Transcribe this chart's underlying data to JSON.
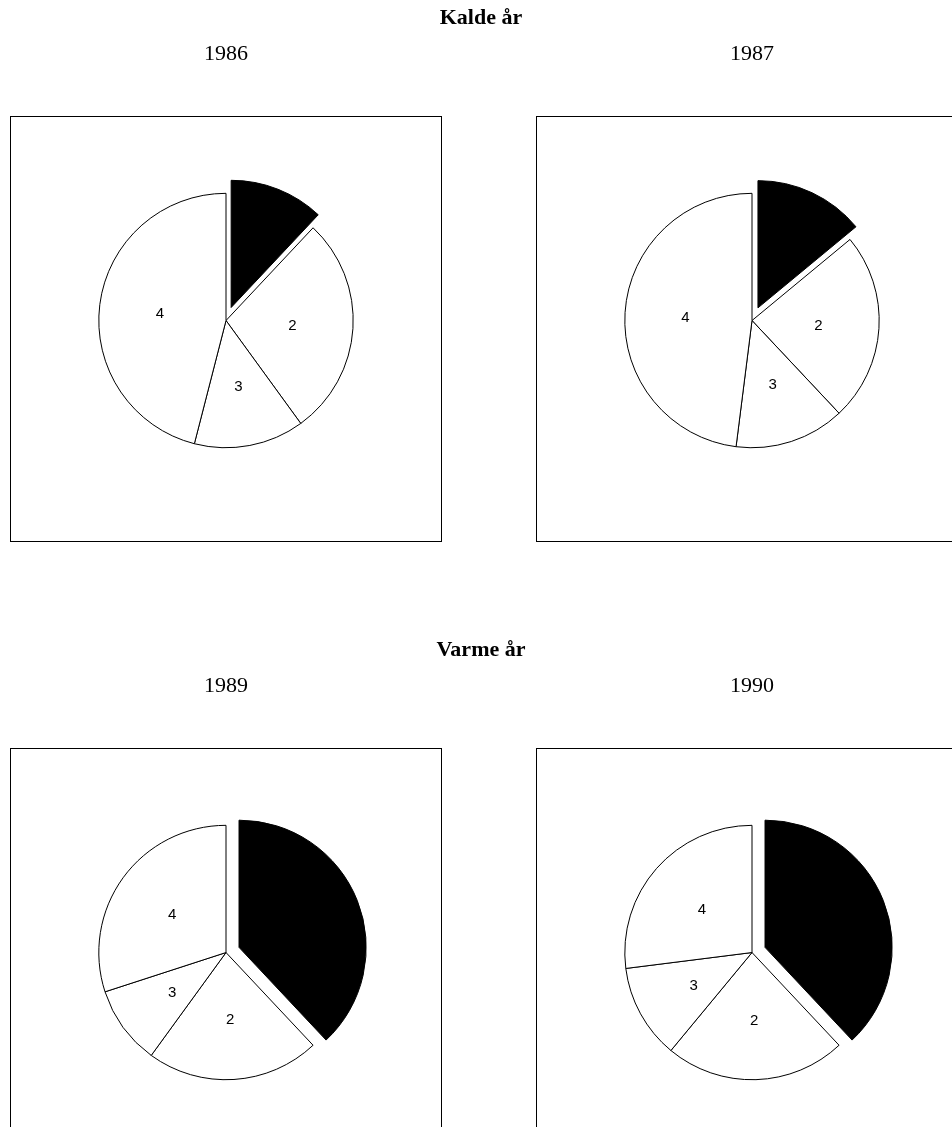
{
  "chart_data": [
    {
      "type": "pie",
      "title": "1986",
      "annotations": [
        "Kalde år"
      ],
      "categories": [
        null,
        "2",
        "3",
        "4"
      ],
      "values": [
        12,
        28,
        14,
        46
      ],
      "colors": [
        "#000000",
        "#ffffff",
        "#ffffff",
        "#ffffff"
      ]
    },
    {
      "type": "pie",
      "title": "1987",
      "categories": [
        null,
        "2",
        "3",
        "4"
      ],
      "values": [
        14,
        24,
        14,
        48
      ],
      "colors": [
        "#000000",
        "#ffffff",
        "#ffffff",
        "#ffffff"
      ]
    },
    {
      "type": "pie",
      "title": "1989",
      "annotations": [
        "Varme år"
      ],
      "categories": [
        null,
        "2",
        "3",
        "4"
      ],
      "values": [
        38,
        22,
        10,
        30
      ],
      "colors": [
        "#000000",
        "#ffffff",
        "#ffffff",
        "#ffffff"
      ]
    },
    {
      "type": "pie",
      "title": "1990",
      "categories": [
        null,
        "2",
        "3",
        "4"
      ],
      "values": [
        38,
        23,
        12,
        27
      ],
      "colors": [
        "#000000",
        "#ffffff",
        "#ffffff",
        "#ffffff"
      ]
    }
  ]
}
